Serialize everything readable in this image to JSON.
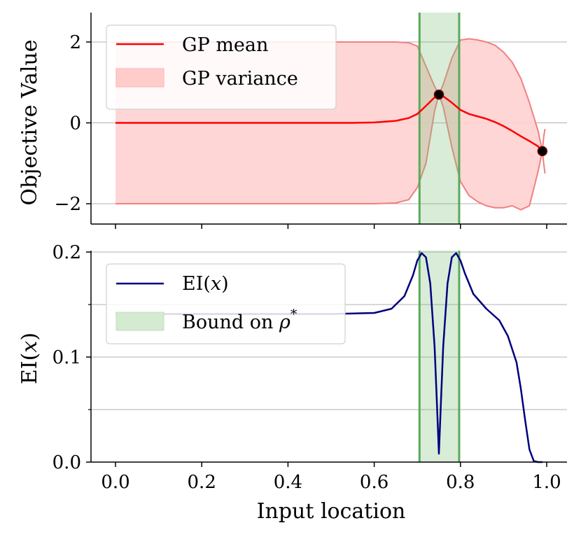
{
  "chart_data": [
    {
      "type": "line",
      "panel": "top",
      "ylabel": "Objective Value",
      "xlim": [
        0.0,
        1.0
      ],
      "ylim": [
        -2.5,
        2.7
      ],
      "yticks": [
        -2,
        0,
        2
      ],
      "ytick_labels": [
        "−2",
        "0",
        "2"
      ],
      "grid": "horizontal",
      "legend_position": "top-left",
      "series": [
        {
          "name": "GP mean",
          "color": "#ff0000",
          "x": [
            0.0,
            0.1,
            0.2,
            0.3,
            0.4,
            0.5,
            0.55,
            0.6,
            0.65,
            0.68,
            0.7,
            0.72,
            0.74,
            0.75,
            0.76,
            0.78,
            0.8,
            0.82,
            0.84,
            0.86,
            0.88,
            0.9,
            0.92,
            0.94,
            0.96,
            0.98,
            0.99
          ],
          "y": [
            0.0,
            0.0,
            0.0,
            0.0,
            0.0,
            0.0,
            0.0,
            0.01,
            0.05,
            0.12,
            0.22,
            0.42,
            0.63,
            0.7,
            0.66,
            0.5,
            0.32,
            0.22,
            0.16,
            0.1,
            0.02,
            -0.08,
            -0.2,
            -0.33,
            -0.45,
            -0.58,
            -0.7
          ]
        },
        {
          "name": "GP variance",
          "color": "#ff9a9a",
          "x": [
            0.0,
            0.1,
            0.2,
            0.3,
            0.4,
            0.5,
            0.55,
            0.6,
            0.65,
            0.68,
            0.7,
            0.72,
            0.74,
            0.75,
            0.76,
            0.78,
            0.8,
            0.82,
            0.84,
            0.86,
            0.88,
            0.9,
            0.92,
            0.94,
            0.96,
            0.98,
            0.99
          ],
          "upper": [
            2.0,
            2.0,
            2.0,
            2.0,
            2.0,
            2.0,
            2.0,
            2.0,
            2.0,
            1.98,
            1.9,
            1.4,
            0.9,
            0.7,
            0.95,
            1.6,
            2.05,
            2.08,
            2.05,
            2.0,
            1.92,
            1.75,
            1.5,
            1.1,
            0.5,
            -0.2,
            -0.7
          ],
          "lower": [
            -2.0,
            -2.0,
            -2.0,
            -2.0,
            -2.0,
            -2.0,
            -2.0,
            -2.0,
            -1.98,
            -1.9,
            -1.6,
            -1.0,
            0.3,
            0.7,
            0.4,
            -0.6,
            -1.45,
            -1.8,
            -1.95,
            -2.05,
            -2.1,
            -2.1,
            -2.05,
            -2.15,
            -2.05,
            -1.2,
            -0.7
          ]
        }
      ],
      "points": {
        "x": [
          0.75,
          0.99
        ],
        "y": [
          0.7,
          -0.7
        ],
        "color": "#000000"
      },
      "edge_tail": {
        "x": [
          0.99,
          0.993,
          0.996
        ],
        "y_upper": [
          -0.7,
          -0.35,
          -0.15
        ],
        "y_lower": [
          -0.7,
          -1.0,
          -1.25
        ]
      },
      "shaded_band": {
        "x0": 0.705,
        "x1": 0.797
      },
      "legend": [
        {
          "label": "GP mean",
          "kind": "line",
          "color": "#ff0000"
        },
        {
          "label": "GP variance",
          "kind": "patch",
          "color": "#ffcccc"
        }
      ]
    },
    {
      "type": "line",
      "panel": "bottom",
      "xlabel": "Input location",
      "ylabel": "EI(x)",
      "xlim": [
        0.0,
        1.0
      ],
      "ylim": [
        0.0,
        0.2
      ],
      "xticks": [
        0.0,
        0.2,
        0.4,
        0.6,
        0.8,
        1.0
      ],
      "xtick_labels": [
        "0.0",
        "0.2",
        "0.4",
        "0.6",
        "0.8",
        "1.0"
      ],
      "yticks": [
        0.0,
        0.1,
        0.2
      ],
      "ytick_labels": [
        "0.0",
        "0.1",
        "0.2"
      ],
      "minor_yticks": [
        0.05,
        0.15
      ],
      "grid": "horizontal",
      "legend_position": "top-left",
      "series": [
        {
          "name": "EI(x)",
          "color": "#00007f",
          "x": [
            0.0,
            0.1,
            0.2,
            0.3,
            0.4,
            0.5,
            0.6,
            0.64,
            0.67,
            0.69,
            0.7,
            0.71,
            0.72,
            0.73,
            0.74,
            0.745,
            0.75,
            0.755,
            0.76,
            0.77,
            0.78,
            0.79,
            0.8,
            0.81,
            0.83,
            0.86,
            0.89,
            0.91,
            0.93,
            0.94,
            0.95,
            0.96,
            0.97,
            0.98,
            0.99
          ],
          "y": [
            0.141,
            0.141,
            0.141,
            0.141,
            0.141,
            0.141,
            0.142,
            0.146,
            0.158,
            0.178,
            0.192,
            0.199,
            0.195,
            0.17,
            0.11,
            0.06,
            0.008,
            0.06,
            0.11,
            0.17,
            0.195,
            0.199,
            0.192,
            0.18,
            0.16,
            0.146,
            0.135,
            0.12,
            0.095,
            0.07,
            0.04,
            0.012,
            0.001,
            0.0,
            0.0
          ]
        }
      ],
      "shaded_band": {
        "x0": 0.705,
        "x1": 0.797
      },
      "legend": [
        {
          "label": "EI(",
          "label_var": "x",
          "label_end": ")",
          "kind": "line",
          "color": "#00007f"
        },
        {
          "label": "Bound on ",
          "label_var": "ρ",
          "label_sup": "*",
          "kind": "patch",
          "color": "#d4ead1"
        }
      ]
    }
  ],
  "axis_labels": {
    "top_ylabel": "Objective Value",
    "bottom_ylabel_pre": "EI(",
    "bottom_ylabel_var": "x",
    "bottom_ylabel_post": ")",
    "xlabel": "Input location"
  },
  "colors": {
    "gp_mean": "#ff0000",
    "gp_variance_fill": "#ffd2d2",
    "gp_variance_edge": "#f08080",
    "ei_line": "#00007f",
    "band_fill": "#d5ead2",
    "band_edge": "#5aaa5a",
    "grid": "#b0b0b0",
    "axis": "#000000"
  }
}
